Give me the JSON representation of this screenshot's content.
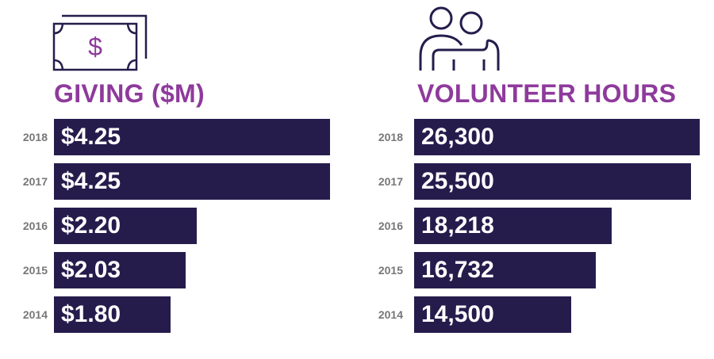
{
  "colors": {
    "bar": "#261c4c",
    "title": "#8e3a9c",
    "year": "#777777",
    "icon_outline": "#261c4c",
    "icon_accent": "#8e3a9c"
  },
  "icons": {
    "giving": "money-bill-icon",
    "volunteer": "people-hug-icon"
  },
  "chart_data": [
    {
      "type": "bar",
      "orientation": "horizontal",
      "title": "GIVING ($M)",
      "categories": [
        "2018",
        "2017",
        "2016",
        "2015",
        "2014"
      ],
      "values": [
        4.25,
        4.25,
        2.2,
        2.03,
        1.8
      ],
      "data_labels": [
        "$4.25",
        "$4.25",
        "$2.20",
        "$2.03",
        "$1.80"
      ],
      "xlim": [
        0,
        4.25
      ],
      "grid": false,
      "legend": "none"
    },
    {
      "type": "bar",
      "orientation": "horizontal",
      "title": "VOLUNTEER HOURS",
      "categories": [
        "2018",
        "2017",
        "2016",
        "2015",
        "2014"
      ],
      "values": [
        26300,
        25500,
        18218,
        16732,
        14500
      ],
      "data_labels": [
        "26,300",
        "25,500",
        "18,218",
        "16,732",
        "14,500"
      ],
      "xlim": [
        0,
        26300
      ],
      "grid": false,
      "legend": "none"
    }
  ]
}
